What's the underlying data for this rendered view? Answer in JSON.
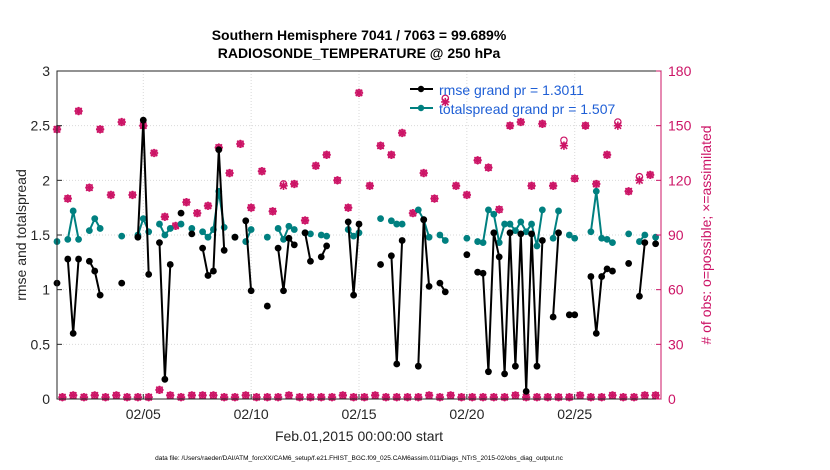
{
  "chart_data": {
    "type": "line",
    "title_line1": "Southern Hemisphere 7041 / 7063 = 99.689%",
    "title_line2": "RADIOSONDE_TEMPERATURE @ 250 hPa",
    "xlabel": "Feb.01,2015 00:00:00 start",
    "ylabel_left": "rmse and totalspread",
    "ylabel_right": "# of obs: o=possible; ×=assimilated",
    "footer": "data file: /Users/raeder/DAI/ATM_forcXX/CAM6_setup/f.e21.FHIST_BGC.f09_025.CAM6assim.011/Diags_NTrS_2015-02/obs_diag_output.nc",
    "xlim": [
      1,
      29
    ],
    "ylim_left": [
      0,
      3
    ],
    "ylim_right": [
      0,
      180
    ],
    "x_ticks": [
      5,
      10,
      15,
      20,
      25
    ],
    "x_tick_labels": [
      "02/05",
      "02/10",
      "02/15",
      "02/20",
      "02/25"
    ],
    "y_left_ticks": [
      0,
      0.5,
      1,
      1.5,
      2,
      2.5,
      3
    ],
    "y_left_tick_labels": [
      "0",
      "0.5",
      "1",
      "1.5",
      "2",
      "2.5",
      "3"
    ],
    "y_right_ticks": [
      0,
      30,
      60,
      90,
      120,
      150,
      180
    ],
    "y_right_tick_labels": [
      "0",
      "30",
      "60",
      "90",
      "120",
      "150",
      "180"
    ],
    "grid": true,
    "legend_position": "top-right",
    "series": [
      {
        "name": "rmse grand pr = 1.3011",
        "axis": "left",
        "color": "#000000",
        "x": [
          1.0,
          1.25,
          1.5,
          1.75,
          2.0,
          2.25,
          2.5,
          2.75,
          3.0,
          3.25,
          3.5,
          3.75,
          4.0,
          4.25,
          4.5,
          4.75,
          5.0,
          5.25,
          5.5,
          5.75,
          6.0,
          6.25,
          6.5,
          6.75,
          7.0,
          7.25,
          7.5,
          7.75,
          8.0,
          8.25,
          8.5,
          8.75,
          9.0,
          9.25,
          9.5,
          9.75,
          10.0,
          10.25,
          10.5,
          10.75,
          11.0,
          11.25,
          11.5,
          11.75,
          12.0,
          12.25,
          12.5,
          12.75,
          13.0,
          13.25,
          13.5,
          13.75,
          14.0,
          14.25,
          14.5,
          14.75,
          15.0,
          15.25,
          15.5,
          15.75,
          16.0,
          16.25,
          16.5,
          16.75,
          17.0,
          17.25,
          17.5,
          17.75,
          18.0,
          18.25,
          18.5,
          18.75,
          19.0,
          19.25,
          19.5,
          19.75,
          20.0,
          20.25,
          20.5,
          20.75,
          21.0,
          21.25,
          21.5,
          21.75,
          22.0,
          22.25,
          22.5,
          22.75,
          23.0,
          23.25,
          23.5,
          23.75,
          24.0,
          24.25,
          24.5,
          24.75,
          25.0,
          25.25,
          25.5,
          25.75,
          26.0,
          26.25,
          26.5,
          26.75,
          27.0,
          27.25,
          27.5,
          27.75,
          28.0,
          28.25,
          28.5,
          28.75
        ],
        "values": [
          1.06,
          null,
          1.28,
          0.6,
          1.28,
          null,
          1.26,
          1.17,
          0.95,
          null,
          null,
          null,
          1.06,
          null,
          null,
          1.48,
          2.55,
          1.14,
          null,
          1.43,
          0.18,
          1.23,
          null,
          1.7,
          null,
          1.51,
          null,
          1.38,
          1.13,
          1.17,
          2.28,
          1.36,
          null,
          1.48,
          null,
          1.63,
          0.99,
          null,
          null,
          0.85,
          null,
          1.38,
          0.99,
          1.47,
          1.41,
          null,
          1.52,
          1.26,
          null,
          1.3,
          1.4,
          null,
          null,
          null,
          1.62,
          0.95,
          1.6,
          null,
          null,
          null,
          1.23,
          null,
          1.31,
          0.32,
          1.45,
          null,
          null,
          0.3,
          1.64,
          1.03,
          null,
          1.06,
          0.98,
          null,
          null,
          null,
          1.32,
          null,
          1.16,
          1.15,
          0.25,
          1.52,
          1.3,
          0.23,
          1.52,
          0.3,
          1.51,
          0.07,
          1.51,
          0.3,
          1.45,
          null,
          0.75,
          1.52,
          null,
          0.77,
          0.77,
          null,
          null,
          1.12,
          0.6,
          1.12,
          1.19,
          1.17,
          null,
          null,
          1.24,
          null,
          0.94,
          1.43,
          null,
          1.42
        ]
      },
      {
        "name": "totalspread grand pr = 1.507",
        "axis": "left",
        "color": "#008080",
        "x": [
          1.0,
          1.25,
          1.5,
          1.75,
          2.0,
          2.25,
          2.5,
          2.75,
          3.0,
          3.25,
          3.5,
          3.75,
          4.0,
          4.25,
          4.5,
          4.75,
          5.0,
          5.25,
          5.5,
          5.75,
          6.0,
          6.25,
          6.5,
          6.75,
          7.0,
          7.25,
          7.5,
          7.75,
          8.0,
          8.25,
          8.5,
          8.75,
          9.0,
          9.25,
          9.5,
          9.75,
          10.0,
          10.25,
          10.5,
          10.75,
          11.0,
          11.25,
          11.5,
          11.75,
          12.0,
          12.25,
          12.5,
          12.75,
          13.0,
          13.25,
          13.5,
          13.75,
          14.0,
          14.25,
          14.5,
          14.75,
          15.0,
          15.25,
          15.5,
          15.75,
          16.0,
          16.25,
          16.5,
          16.75,
          17.0,
          17.25,
          17.5,
          17.75,
          18.0,
          18.25,
          18.5,
          18.75,
          19.0,
          19.25,
          19.5,
          19.75,
          20.0,
          20.25,
          20.5,
          20.75,
          21.0,
          21.25,
          21.5,
          21.75,
          22.0,
          22.25,
          22.5,
          22.75,
          23.0,
          23.25,
          23.5,
          23.75,
          24.0,
          24.25,
          24.5,
          24.75,
          25.0,
          25.25,
          25.5,
          25.75,
          26.0,
          26.25,
          26.5,
          26.75,
          27.0,
          27.25,
          27.5,
          27.75,
          28.0,
          28.25,
          28.5,
          28.75
        ],
        "values": [
          1.44,
          null,
          1.46,
          1.72,
          1.46,
          null,
          1.54,
          1.65,
          1.56,
          null,
          null,
          null,
          1.49,
          null,
          null,
          1.5,
          1.65,
          1.53,
          null,
          1.6,
          1.5,
          1.56,
          null,
          1.6,
          null,
          1.56,
          null,
          1.53,
          1.48,
          1.55,
          1.9,
          1.57,
          null,
          1.48,
          null,
          1.44,
          1.55,
          null,
          null,
          1.48,
          null,
          1.56,
          1.46,
          1.58,
          1.55,
          null,
          1.52,
          1.51,
          null,
          1.5,
          1.49,
          null,
          null,
          null,
          1.55,
          1.49,
          1.52,
          null,
          null,
          null,
          1.65,
          null,
          1.63,
          1.6,
          1.6,
          null,
          null,
          1.73,
          1.64,
          1.48,
          null,
          1.5,
          1.45,
          null,
          null,
          null,
          1.47,
          null,
          1.44,
          1.43,
          1.73,
          1.69,
          1.43,
          1.6,
          1.6,
          1.54,
          1.62,
          1.53,
          1.6,
          1.4,
          1.73,
          null,
          1.47,
          1.72,
          null,
          1.5,
          1.47,
          null,
          null,
          1.53,
          1.9,
          1.47,
          1.46,
          1.43,
          null,
          null,
          1.51,
          null,
          1.44,
          1.5,
          null,
          1.48
        ]
      },
      {
        "name": "possible",
        "axis": "right",
        "color": "#cc1466",
        "marker": "circle",
        "x": [
          1.0,
          1.25,
          1.5,
          1.75,
          2.0,
          2.25,
          2.5,
          2.75,
          3.0,
          3.25,
          3.5,
          3.75,
          4.0,
          4.25,
          4.5,
          4.75,
          5.0,
          5.25,
          5.5,
          5.75,
          6.0,
          6.25,
          6.5,
          6.75,
          7.0,
          7.25,
          7.5,
          7.75,
          8.0,
          8.25,
          8.5,
          8.75,
          9.0,
          9.25,
          9.5,
          9.75,
          10.0,
          10.25,
          10.5,
          10.75,
          11.0,
          11.25,
          11.5,
          11.75,
          12.0,
          12.25,
          12.5,
          12.75,
          13.0,
          13.25,
          13.5,
          13.75,
          14.0,
          14.25,
          14.5,
          14.75,
          15.0,
          15.25,
          15.5,
          15.75,
          16.0,
          16.25,
          16.5,
          16.75,
          17.0,
          17.25,
          17.5,
          17.75,
          18.0,
          18.25,
          18.5,
          18.75,
          19.0,
          19.25,
          19.5,
          19.75,
          20.0,
          20.25,
          20.5,
          20.75,
          21.0,
          21.25,
          21.5,
          21.75,
          22.0,
          22.25,
          22.5,
          22.75,
          23.0,
          23.25,
          23.5,
          23.75,
          24.0,
          24.25,
          24.5,
          24.75,
          25.0,
          25.25,
          25.5,
          25.75,
          26.0,
          26.25,
          26.5,
          26.75,
          27.0,
          27.25,
          27.5,
          27.75,
          28.0,
          28.25,
          28.5,
          28.75
        ],
        "values": [
          148,
          1,
          110,
          2,
          158,
          1,
          116,
          2,
          148,
          1,
          112,
          2,
          152,
          1,
          112,
          1,
          150,
          1,
          135,
          5,
          100,
          2,
          95,
          1,
          108,
          2,
          102,
          2,
          106,
          2,
          138,
          1,
          124,
          1,
          140,
          2,
          105,
          1,
          125,
          1,
          103,
          1,
          118,
          2,
          118,
          1,
          98,
          1,
          128,
          1,
          134,
          1,
          120,
          2,
          105,
          1,
          168,
          1,
          117,
          2,
          139,
          1,
          134,
          1,
          146,
          1,
          102,
          1,
          124,
          2,
          110,
          1,
          165,
          2,
          117,
          1,
          112,
          1,
          131,
          1,
          127,
          1,
          104,
          1,
          150,
          2,
          152,
          1,
          117,
          1,
          151,
          1,
          117,
          1,
          142,
          1,
          121,
          2,
          150,
          1,
          118,
          1,
          134,
          2,
          152,
          1,
          114,
          1,
          122,
          2,
          123,
          2
        ]
      },
      {
        "name": "assimilated",
        "axis": "right",
        "color": "#cc1466",
        "marker": "x",
        "x": [
          1.0,
          1.25,
          1.5,
          1.75,
          2.0,
          2.25,
          2.5,
          2.75,
          3.0,
          3.25,
          3.5,
          3.75,
          4.0,
          4.25,
          4.5,
          4.75,
          5.0,
          5.25,
          5.5,
          5.75,
          6.0,
          6.25,
          6.5,
          6.75,
          7.0,
          7.25,
          7.5,
          7.75,
          8.0,
          8.25,
          8.5,
          8.75,
          9.0,
          9.25,
          9.5,
          9.75,
          10.0,
          10.25,
          10.5,
          10.75,
          11.0,
          11.25,
          11.5,
          11.75,
          12.0,
          12.25,
          12.5,
          12.75,
          13.0,
          13.25,
          13.5,
          13.75,
          14.0,
          14.25,
          14.5,
          14.75,
          15.0,
          15.25,
          15.5,
          15.75,
          16.0,
          16.25,
          16.5,
          16.75,
          17.0,
          17.25,
          17.5,
          17.75,
          18.0,
          18.25,
          18.5,
          18.75,
          19.0,
          19.25,
          19.5,
          19.75,
          20.0,
          20.25,
          20.5,
          20.75,
          21.0,
          21.25,
          21.5,
          21.75,
          22.0,
          22.25,
          22.5,
          22.75,
          23.0,
          23.25,
          23.5,
          23.75,
          24.0,
          24.25,
          24.5,
          24.75,
          25.0,
          25.25,
          25.5,
          25.75,
          26.0,
          26.25,
          26.5,
          26.75,
          27.0,
          27.25,
          27.5,
          27.75,
          28.0,
          28.25,
          28.5,
          28.75
        ],
        "values": [
          148,
          1,
          110,
          2,
          158,
          1,
          116,
          2,
          148,
          1,
          112,
          2,
          152,
          1,
          112,
          1,
          150,
          1,
          135,
          5,
          100,
          2,
          95,
          1,
          108,
          2,
          102,
          2,
          106,
          2,
          138,
          1,
          124,
          1,
          140,
          2,
          105,
          1,
          125,
          1,
          103,
          1,
          117,
          2,
          118,
          1,
          98,
          1,
          128,
          1,
          134,
          1,
          120,
          2,
          105,
          1,
          168,
          1,
          117,
          2,
          139,
          1,
          134,
          1,
          146,
          1,
          102,
          1,
          124,
          2,
          110,
          1,
          163,
          2,
          117,
          1,
          112,
          1,
          131,
          1,
          127,
          1,
          104,
          1,
          150,
          2,
          152,
          1,
          117,
          1,
          151,
          1,
          117,
          1,
          139,
          1,
          121,
          2,
          150,
          1,
          118,
          1,
          134,
          2,
          150,
          1,
          114,
          1,
          120,
          2,
          123,
          2
        ]
      }
    ]
  }
}
